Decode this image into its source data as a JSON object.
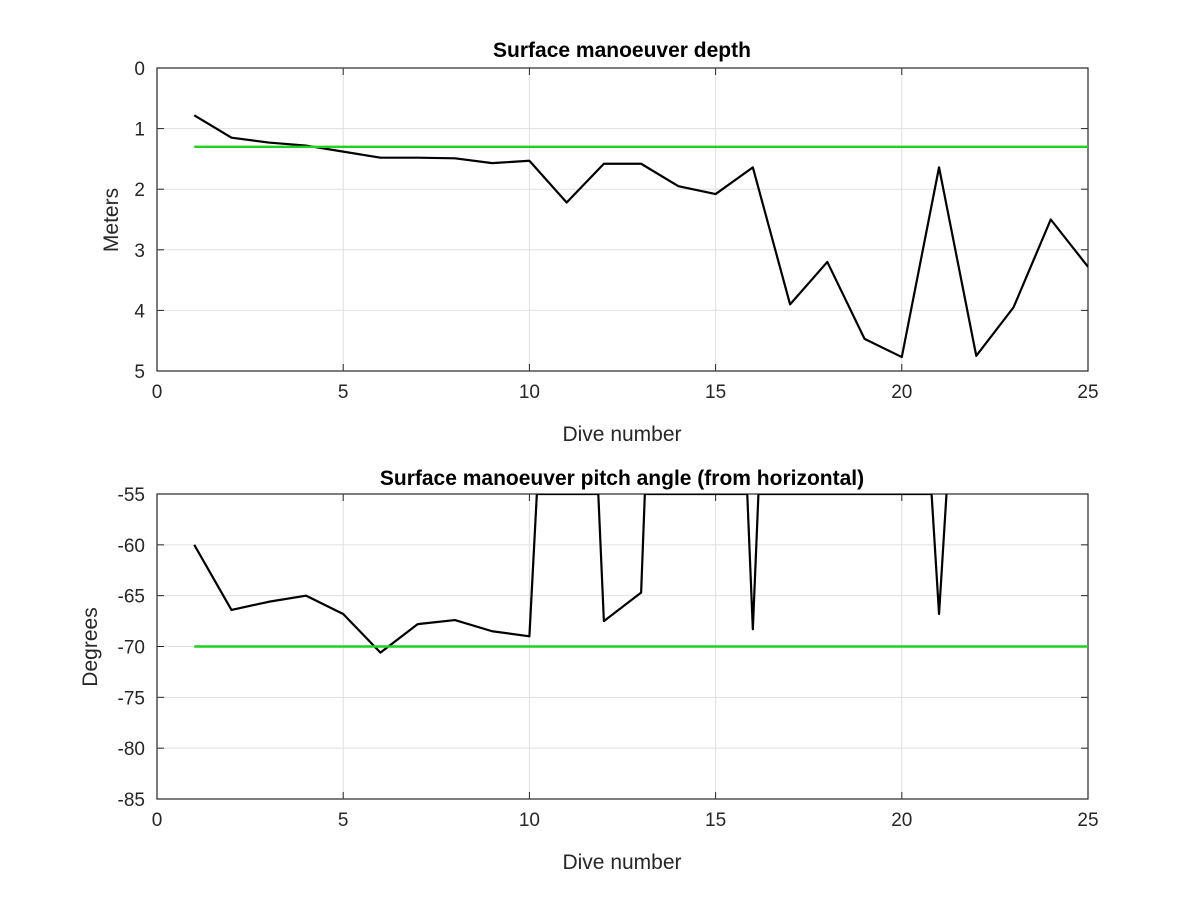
{
  "chart_data": [
    {
      "type": "line",
      "title": "Surface manoeuver depth",
      "xlabel": "Dive number",
      "ylabel": "Meters",
      "xlim": [
        0,
        25
      ],
      "ylim": [
        0,
        5
      ],
      "y_reversed": true,
      "grid": true,
      "xticks": [
        "0",
        "5",
        "10",
        "15",
        "20",
        "25"
      ],
      "yticks": [
        "0",
        "1",
        "2",
        "3",
        "4",
        "5"
      ],
      "series": [
        {
          "color": "#000000",
          "x": [
            1,
            2,
            3,
            4,
            5,
            6,
            7,
            8,
            9,
            10,
            11,
            12,
            13,
            14,
            15,
            16,
            17,
            18,
            19,
            20,
            21,
            22,
            23,
            24,
            25
          ],
          "y": [
            0.78,
            1.15,
            1.23,
            1.28,
            1.38,
            1.48,
            1.48,
            1.49,
            1.57,
            1.53,
            2.22,
            1.58,
            1.58,
            1.95,
            2.08,
            1.64,
            3.9,
            3.2,
            4.47,
            4.77,
            1.64,
            4.75,
            3.95,
            2.5,
            3.28
          ]
        },
        {
          "color": "#1fd21f",
          "x": [
            1,
            25
          ],
          "y": [
            1.3,
            1.3
          ]
        }
      ]
    },
    {
      "type": "line",
      "title": "Surface manoeuver pitch angle (from horizontal)",
      "xlabel": "Dive number",
      "ylabel": "Degrees",
      "xlim": [
        0,
        25
      ],
      "ylim": [
        -85,
        -55
      ],
      "grid": true,
      "xticks": [
        "0",
        "5",
        "10",
        "15",
        "20",
        "25"
      ],
      "yticks": [
        "-55",
        "-60",
        "-65",
        "-70",
        "-75",
        "-80",
        "-85"
      ],
      "series": [
        {
          "color": "#000000",
          "x": [
            1,
            2,
            3,
            4,
            5,
            6,
            7,
            8,
            9,
            10,
            10.2,
            11.85,
            12,
            13,
            13.1,
            15.85,
            16,
            16.15,
            20.8,
            21,
            21.2
          ],
          "y": [
            -60,
            -66.4,
            -65.6,
            -65,
            -66.8,
            -70.6,
            -67.8,
            -67.4,
            -68.5,
            -69,
            -55,
            -55,
            -67.5,
            -64.7,
            -55,
            -55,
            -68.3,
            -55,
            -55,
            -66.8,
            -55
          ]
        },
        {
          "color": "#1fd21f",
          "x": [
            1,
            25
          ],
          "y": [
            -70,
            -70
          ]
        }
      ]
    }
  ]
}
